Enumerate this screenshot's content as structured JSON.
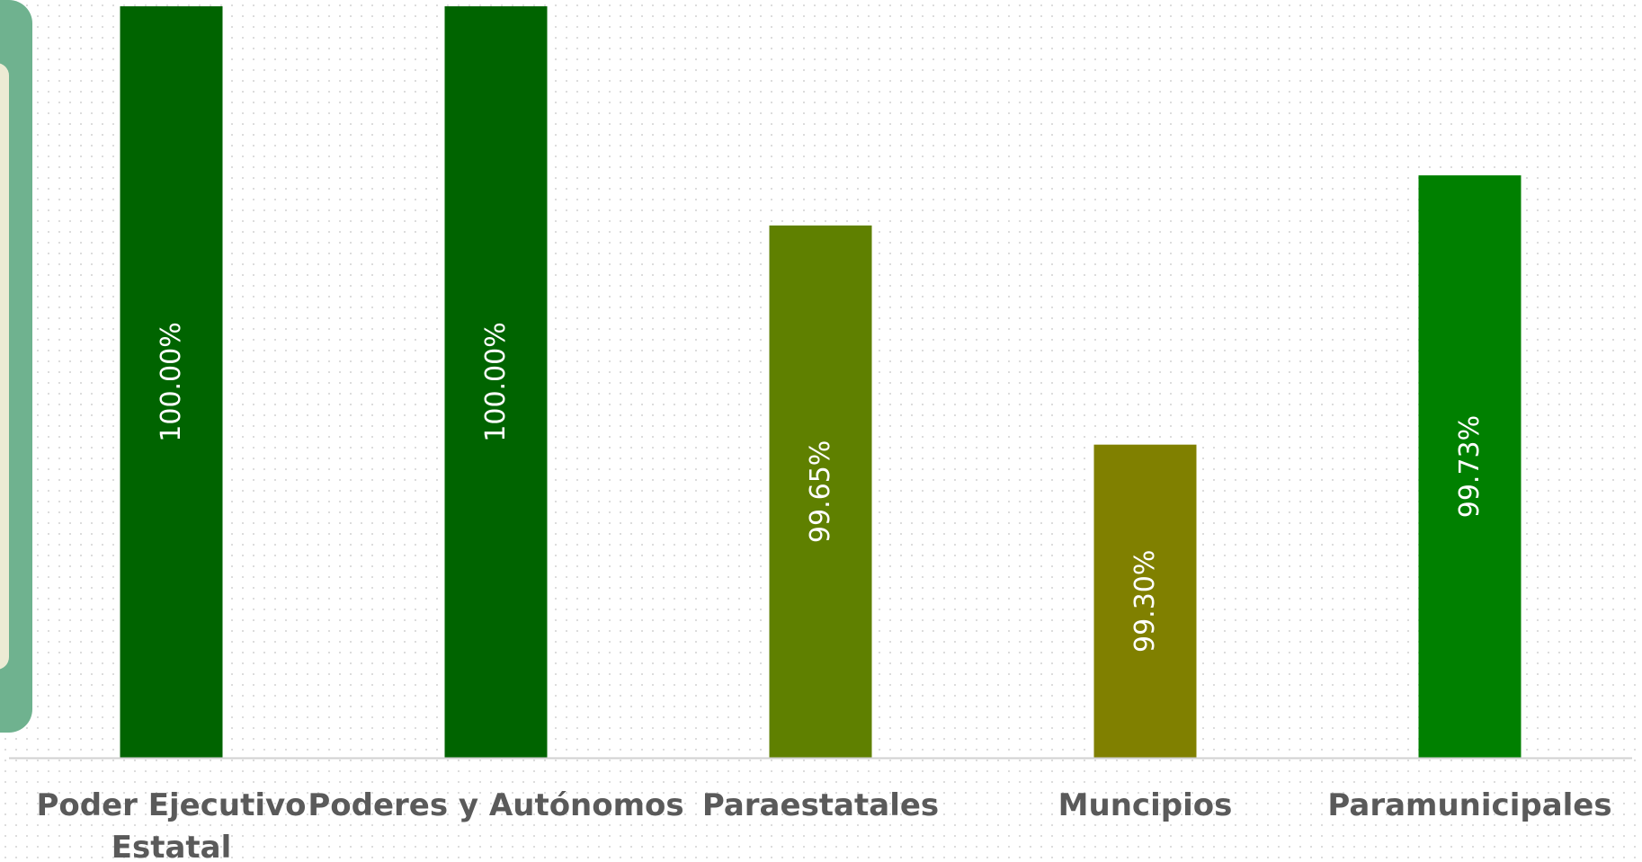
{
  "chart_data": {
    "type": "bar",
    "categories": [
      "Poder Ejecutivo Estatal",
      "Poderes y Autónomos",
      "Paraestatales",
      "Muncipios",
      "Paramunicipales"
    ],
    "category_lines": [
      [
        "Poder Ejecutivo",
        "Estatal"
      ],
      [
        "Poderes y Autónomos"
      ],
      [
        "Paraestatales"
      ],
      [
        "Muncipios"
      ],
      [
        "Paramunicipales"
      ]
    ],
    "values": [
      100.0,
      100.0,
      99.65,
      99.3,
      99.73
    ],
    "data_labels": [
      "100.00%",
      "100.00%",
      "99.65%",
      "99.30%",
      "99.73%"
    ],
    "colors": [
      "#006400",
      "#006400",
      "#5f8000",
      "#808000",
      "#008000"
    ],
    "ylim": [
      98.8,
      100.0
    ],
    "grid": false,
    "title": "",
    "xlabel": "",
    "ylabel": ""
  },
  "side_panel": {
    "color": "#6fb28f",
    "inner_color": "#ecebd4"
  }
}
